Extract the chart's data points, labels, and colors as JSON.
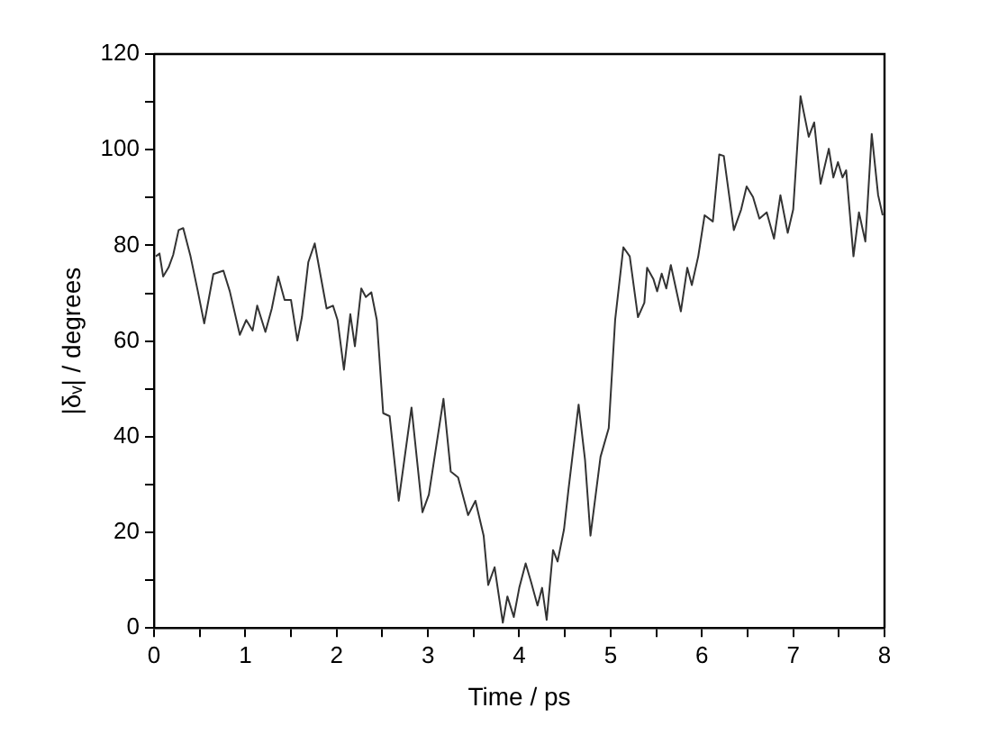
{
  "chart_data": {
    "type": "line",
    "xlabel": "Time / ps",
    "ylabel": "|δᵥ| / degrees",
    "x": [
      0.02,
      0.06,
      0.1,
      0.16,
      0.21,
      0.27,
      0.32,
      0.4,
      0.48,
      0.55,
      0.65,
      0.76,
      0.83,
      0.94,
      1.01,
      1.08,
      1.13,
      1.22,
      1.29,
      1.36,
      1.43,
      1.5,
      1.57,
      1.62,
      1.69,
      1.76,
      1.89,
      1.96,
      2.01,
      2.08,
      2.15,
      2.2,
      2.27,
      2.32,
      2.38,
      2.44,
      2.51,
      2.58,
      2.68,
      2.82,
      2.94,
      3.01,
      3.17,
      3.25,
      3.33,
      3.44,
      3.52,
      3.61,
      3.66,
      3.73,
      3.82,
      3.87,
      3.94,
      4.0,
      4.07,
      4.13,
      4.2,
      4.25,
      4.3,
      4.37,
      4.42,
      4.49,
      4.54,
      4.65,
      4.72,
      4.78,
      4.89,
      4.98,
      5.05,
      5.14,
      5.21,
      5.3,
      5.37,
      5.4,
      5.47,
      5.51,
      5.56,
      5.61,
      5.66,
      5.77,
      5.84,
      5.89,
      5.96,
      6.03,
      6.12,
      6.19,
      6.24,
      6.35,
      6.43,
      6.49,
      6.56,
      6.63,
      6.71,
      6.79,
      6.86,
      6.94,
      7.0,
      7.08,
      7.17,
      7.23,
      7.3,
      7.39,
      7.44,
      7.49,
      7.54,
      7.58,
      7.66,
      7.72,
      7.79,
      7.86,
      7.93,
      7.98
    ],
    "series": [
      {
        "color": "#333333",
        "values": [
          77.7,
          78.3,
          73.5,
          75.4,
          78,
          83.2,
          83.6,
          77.7,
          70.4,
          63.7,
          74,
          74.7,
          70.4,
          61.3,
          64.4,
          62.2,
          67.4,
          61.9,
          66.8,
          73.5,
          68.6,
          68.6,
          60.1,
          65,
          76.5,
          80.4,
          66.8,
          67.4,
          64.4,
          54,
          65.6,
          58.9,
          71,
          69.2,
          70.2,
          64.4,
          44.9,
          44.3,
          26.6,
          46.1,
          24.2,
          27.9,
          47.9,
          32.7,
          31.5,
          23.6,
          26.6,
          19.3,
          9,
          12.7,
          1.1,
          6.6,
          2.3,
          8.4,
          13.5,
          9.6,
          4.7,
          8.4,
          1.7,
          16.3,
          13.9,
          20.6,
          29.1,
          46.7,
          35.2,
          19.3,
          35.8,
          41.8,
          64.4,
          79.6,
          77.7,
          65,
          68,
          75.3,
          72.9,
          70.4,
          74.1,
          71,
          75.9,
          66.2,
          75.3,
          71.7,
          77.7,
          86.3,
          85,
          99,
          98.7,
          83.2,
          87.5,
          92.3,
          90.1,
          85.6,
          86.9,
          81.4,
          90.5,
          82.6,
          87.5,
          111.2,
          102.7,
          105.7,
          92.9,
          100.2,
          94.2,
          97.4,
          94.2,
          95.7,
          77.7,
          86.9,
          80.8,
          103.3,
          90.5,
          86.3
        ]
      }
    ],
    "xlim": [
      0,
      8
    ],
    "xticks": [
      0,
      {
        "value": 0.5,
        "label": null
      },
      1,
      {
        "value": 1.5,
        "label": null
      },
      2,
      {
        "value": 2.5,
        "label": null
      },
      3,
      {
        "value": 3.5,
        "label": null
      },
      4,
      {
        "value": 4.5,
        "label": null
      },
      5,
      {
        "value": 5.5,
        "label": null
      },
      6,
      {
        "value": 6.5,
        "label": null
      },
      7,
      {
        "value": 7.5,
        "label": null
      },
      8
    ],
    "ylim": [
      0,
      120
    ],
    "yticks": [
      0,
      {
        "value": 10,
        "label": null
      },
      20,
      {
        "value": 30,
        "label": null
      },
      40,
      {
        "value": 50,
        "label": null
      },
      60,
      {
        "value": 70,
        "label": null
      },
      80,
      {
        "value": 90,
        "label": null
      },
      100,
      {
        "value": 110,
        "label": null
      },
      120
    ],
    "grid": false,
    "legend": false,
    "marker": "none",
    "line_style": "solid"
  }
}
